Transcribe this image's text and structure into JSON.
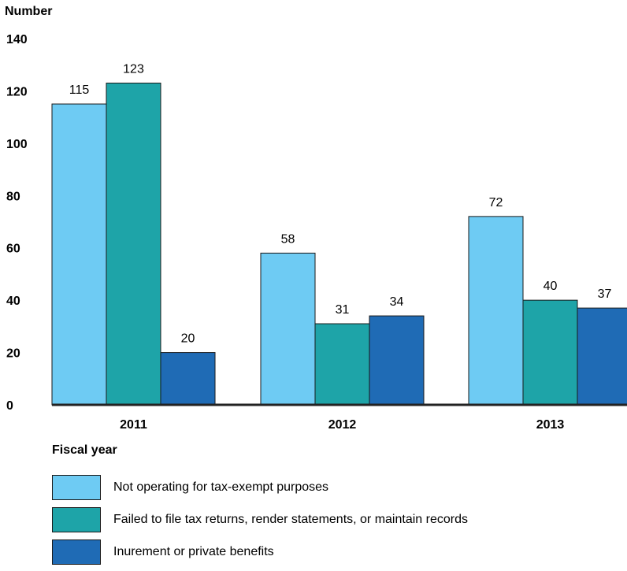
{
  "chart_data": {
    "type": "bar",
    "ylabel": "Number",
    "xlabel": "Fiscal year",
    "ylim": [
      0,
      140
    ],
    "yticks": [
      0,
      20,
      40,
      60,
      80,
      100,
      120,
      140
    ],
    "categories": [
      "2011",
      "2012",
      "2013"
    ],
    "series": [
      {
        "name": "Not operating for tax-exempt purposes",
        "values": [
          115,
          58,
          72
        ],
        "color": "#6ecbf3"
      },
      {
        "name": "Failed to file tax returns, render statements, or maintain records",
        "values": [
          123,
          31,
          40
        ],
        "color": "#1ea4a8"
      },
      {
        "name": "Inurement or private benefits",
        "values": [
          20,
          34,
          37
        ],
        "color": "#1f6bb5"
      }
    ],
    "grid": false,
    "legend_position": "bottom"
  }
}
